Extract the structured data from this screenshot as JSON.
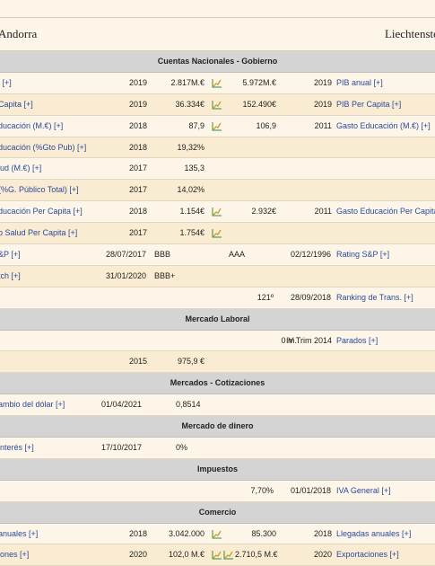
{
  "countries": {
    "left": "Andorra",
    "right": "Liechtenstein"
  },
  "rows": [
    {
      "type": "section",
      "title": "Cuentas Nacionales - Gobierno"
    },
    {
      "type": "data",
      "style": "plain",
      "left_label": "l [+]",
      "left_year": "2019",
      "left_value": "2.817M.€",
      "left_chart": true,
      "right_value": "5.972M.€",
      "right_year": "2019",
      "right_label": "PIB anual [+]"
    },
    {
      "type": "data",
      "style": "alt",
      "left_label": "Capita [+]",
      "left_year": "2019",
      "left_value": "36.334€",
      "left_chart": true,
      "right_value": "152.490€",
      "right_year": "2019",
      "right_label": "PIB Per Capita [+]"
    },
    {
      "type": "data",
      "style": "plain",
      "left_label": "ducación (M.€) [+]",
      "left_year": "2018",
      "left_value": "87,9",
      "left_chart": true,
      "right_value": "106,9",
      "right_year": "2011",
      "right_label": "Gasto Educación (M.€) [+]"
    },
    {
      "type": "data",
      "style": "alt",
      "left_label": "ducación (%Gto Pub) [+]",
      "left_year": "2018",
      "left_value": "19,32%",
      "left_chart": false,
      "right_value": "",
      "right_year": "",
      "right_label": ""
    },
    {
      "type": "data",
      "style": "plain",
      "left_label": "lud (M.€) [+]",
      "left_year": "2017",
      "left_value": "135,3",
      "left_chart": false,
      "right_value": "",
      "right_year": "",
      "right_label": ""
    },
    {
      "type": "data",
      "style": "alt",
      "left_label": "(%G. Público Total) [+]",
      "left_year": "2017",
      "left_value": "14,02%",
      "left_chart": false,
      "right_value": "",
      "right_year": "",
      "right_label": ""
    },
    {
      "type": "data",
      "style": "plain",
      "left_label": "ducación Per Capita [+]",
      "left_year": "2018",
      "left_value": "1.154€",
      "left_chart": true,
      "right_value": "2.932€",
      "right_year": "2011",
      "right_label": "Gasto Educación Per Capita [+]"
    },
    {
      "type": "data",
      "style": "alt",
      "left_label": "o Salud Per Capita [+]",
      "left_year": "2017",
      "left_value": "1.754€",
      "left_chart": true,
      "right_value": "",
      "right_year": "",
      "right_label": ""
    },
    {
      "type": "data",
      "style": "plain",
      "left_label": "&P [+]",
      "left_year": "28/07/2017",
      "left_value": "BBB",
      "left_chart": false,
      "right_value": "AAA",
      "right_year": "02/12/1996",
      "right_label": "Rating S&P [+]",
      "variant": "rating"
    },
    {
      "type": "data",
      "style": "alt",
      "left_label": "tch [+]",
      "left_year": "31/01/2020",
      "left_value": "BBB+",
      "left_chart": false,
      "right_value": "",
      "right_year": "",
      "right_label": "",
      "variant": "rating"
    },
    {
      "type": "data",
      "style": "plain",
      "left_label": "",
      "left_year": "",
      "left_value": "",
      "left_chart": false,
      "right_value": "121º",
      "right_year": "28/09/2018",
      "right_label": "Ranking de Trans. [+]",
      "variant": "trans"
    },
    {
      "type": "section",
      "title": "Mercado Laboral"
    },
    {
      "type": "data",
      "style": "plain",
      "left_label": "",
      "left_year": "",
      "left_value": "",
      "left_chart": false,
      "right_value": "0 m.",
      "right_year": "IV Trim 2014",
      "right_label": "Parados [+]",
      "variant": "labor"
    },
    {
      "type": "data",
      "style": "alt",
      "left_label": "",
      "left_year": "2015",
      "left_value": "975,9 €",
      "left_chart": false,
      "right_value": "",
      "right_year": "",
      "right_label": ""
    },
    {
      "type": "section",
      "title": "Mercados - Cotizaciones"
    },
    {
      "type": "data",
      "style": "plain",
      "left_label": "ambio del dólar [+]",
      "left_year": "01/04/2021",
      "left_value": "0,8514",
      "left_chart": false,
      "right_value": "",
      "right_year": "",
      "right_label": "",
      "variant": "fx"
    },
    {
      "type": "section",
      "title": "Mercado de dinero"
    },
    {
      "type": "data",
      "style": "plain",
      "left_label": "interés [+]",
      "left_year": "17/10/2017",
      "left_value": "0%",
      "left_chart": false,
      "right_value": "",
      "right_year": "",
      "right_label": "",
      "variant": "fx"
    },
    {
      "type": "section",
      "title": "Impuestos"
    },
    {
      "type": "data",
      "style": "plain",
      "left_label": "",
      "left_year": "",
      "left_value": "",
      "left_chart": false,
      "right_value": "7,70%",
      "right_year": "01/01/2018",
      "right_label": "IVA General [+]",
      "variant": "tax"
    },
    {
      "type": "section",
      "title": "Comercio"
    },
    {
      "type": "data",
      "style": "plain",
      "left_label": "anuales [+]",
      "left_year": "2018",
      "left_value": "3.042.000",
      "left_chart": true,
      "right_value": "85.300",
      "right_year": "2018",
      "right_label": "Llegadas anuales [+]"
    },
    {
      "type": "data",
      "style": "alt",
      "left_label": "iones [+]",
      "left_year": "2020",
      "left_value": "102,0 M.€",
      "left_chart": true,
      "right_value": "2.710,5 M.€",
      "right_year": "2020",
      "right_label": "Exportaciones [+]",
      "right_chart": true,
      "variant": "export"
    }
  ],
  "colors": {
    "link": "#2a4a9c",
    "section_bg": "#d4d4d4",
    "alt_bg": "#faecd2",
    "bg": "#fdf6e8"
  },
  "icons": {
    "chart": "line-chart-icon"
  }
}
